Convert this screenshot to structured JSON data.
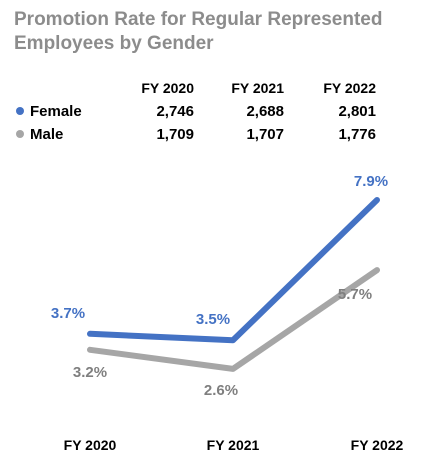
{
  "title": "Promotion Rate for Regular Represented Employees by Gender",
  "table": {
    "headers": [
      "FY 2020",
      "FY 2021",
      "FY 2022"
    ],
    "rows": [
      {
        "label": "Female",
        "values": [
          "2,746",
          "2,688",
          "2,801"
        ]
      },
      {
        "label": "Male",
        "values": [
          "1,709",
          "1,707",
          "1,776"
        ]
      }
    ]
  },
  "chart_data": {
    "type": "line",
    "title": "Promotion Rate for Regular Represented Employees by Gender",
    "categories": [
      "FY 2020",
      "FY 2021",
      "FY 2022"
    ],
    "series": [
      {
        "name": "Female",
        "values": [
          3.7,
          3.5,
          7.9
        ],
        "labels": [
          "3.7%",
          "3.5%",
          "7.9%"
        ],
        "color": "#4472c4"
      },
      {
        "name": "Male",
        "values": [
          3.2,
          2.6,
          5.7
        ],
        "labels": [
          "3.2%",
          "2.6%",
          "5.7%"
        ],
        "color": "#a6a6a6"
      }
    ],
    "grid": false,
    "legend": "top-left"
  }
}
